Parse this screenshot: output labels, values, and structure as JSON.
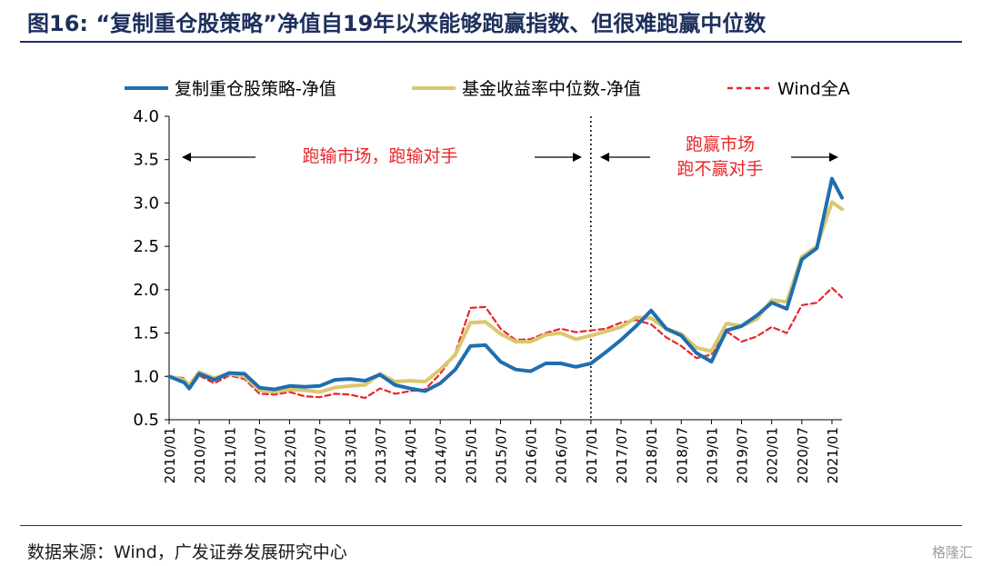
{
  "header": {
    "title": "图16:   “复制重仓股策略”净值自19年以来能够跑赢指数、但很难跑赢中位数"
  },
  "footer": {
    "source": "数据来源：Wind，广发证券发展研究中心",
    "watermark": "格隆汇"
  },
  "colors": {
    "strategy": "#1f6eb0",
    "median": "#d9c86e",
    "wind": "#e8262b",
    "annotation": "#e8262b",
    "title": "#1d2f5c"
  },
  "chart_data": {
    "type": "line",
    "title": "“复制重仓股策略”净值自19年以来能够跑赢指数、但很难跑赢中位数",
    "xlabel": "",
    "ylabel": "",
    "ylim": [
      0.5,
      4.0
    ],
    "yticks": [
      "0.5",
      "1.0",
      "1.5",
      "2.0",
      "2.5",
      "3.0",
      "3.5",
      "4.0"
    ],
    "x_start": "2010/01",
    "x_end": "2021/03",
    "xticks": [
      "2010/01",
      "2010/07",
      "2011/01",
      "2011/07",
      "2012/01",
      "2012/07",
      "2013/01",
      "2013/07",
      "2014/01",
      "2014/07",
      "2015/01",
      "2015/07",
      "2016/01",
      "2016/07",
      "2017/01",
      "2017/07",
      "2018/01",
      "2018/07",
      "2019/01",
      "2019/07",
      "2020/01",
      "2020/07",
      "2021/01"
    ],
    "divider": "2017/01",
    "series": [
      {
        "name": "复制重仓股策略-净值",
        "style": "solid",
        "points": [
          [
            "2010/01",
            1.0
          ],
          [
            "2010/04",
            0.93
          ],
          [
            "2010/05",
            0.86
          ],
          [
            "2010/07",
            1.03
          ],
          [
            "2010/10",
            0.96
          ],
          [
            "2011/01",
            1.04
          ],
          [
            "2011/04",
            1.03
          ],
          [
            "2011/07",
            0.87
          ],
          [
            "2011/10",
            0.85
          ],
          [
            "2012/01",
            0.89
          ],
          [
            "2012/04",
            0.88
          ],
          [
            "2012/07",
            0.89
          ],
          [
            "2012/10",
            0.96
          ],
          [
            "2013/01",
            0.97
          ],
          [
            "2013/04",
            0.95
          ],
          [
            "2013/07",
            1.02
          ],
          [
            "2013/10",
            0.9
          ],
          [
            "2014/01",
            0.86
          ],
          [
            "2014/04",
            0.83
          ],
          [
            "2014/07",
            0.92
          ],
          [
            "2014/10",
            1.08
          ],
          [
            "2015/01",
            1.35
          ],
          [
            "2015/04",
            1.36
          ],
          [
            "2015/07",
            1.17
          ],
          [
            "2015/10",
            1.08
          ],
          [
            "2016/01",
            1.06
          ],
          [
            "2016/04",
            1.15
          ],
          [
            "2016/07",
            1.15
          ],
          [
            "2016/10",
            1.11
          ],
          [
            "2017/01",
            1.15
          ],
          [
            "2017/04",
            1.28
          ],
          [
            "2017/07",
            1.42
          ],
          [
            "2017/10",
            1.58
          ],
          [
            "2018/01",
            1.76
          ],
          [
            "2018/04",
            1.55
          ],
          [
            "2018/07",
            1.47
          ],
          [
            "2018/10",
            1.27
          ],
          [
            "2019/01",
            1.17
          ],
          [
            "2019/04",
            1.53
          ],
          [
            "2019/07",
            1.58
          ],
          [
            "2019/10",
            1.7
          ],
          [
            "2020/01",
            1.85
          ],
          [
            "2020/04",
            1.78
          ],
          [
            "2020/07",
            2.35
          ],
          [
            "2020/10",
            2.48
          ],
          [
            "2021/01",
            3.28
          ],
          [
            "2021/03",
            3.06
          ]
        ]
      },
      {
        "name": "基金收益率中位数-净值",
        "style": "solid",
        "points": [
          [
            "2010/01",
            1.0
          ],
          [
            "2010/04",
            0.96
          ],
          [
            "2010/05",
            0.9
          ],
          [
            "2010/07",
            1.05
          ],
          [
            "2010/10",
            0.98
          ],
          [
            "2011/01",
            1.03
          ],
          [
            "2011/04",
            1.0
          ],
          [
            "2011/07",
            0.84
          ],
          [
            "2011/10",
            0.82
          ],
          [
            "2012/01",
            0.85
          ],
          [
            "2012/04",
            0.84
          ],
          [
            "2012/07",
            0.82
          ],
          [
            "2012/10",
            0.87
          ],
          [
            "2013/01",
            0.89
          ],
          [
            "2013/04",
            0.9
          ],
          [
            "2013/07",
            1.03
          ],
          [
            "2013/10",
            0.94
          ],
          [
            "2014/01",
            0.95
          ],
          [
            "2014/04",
            0.94
          ],
          [
            "2014/07",
            1.08
          ],
          [
            "2014/10",
            1.25
          ],
          [
            "2015/01",
            1.62
          ],
          [
            "2015/04",
            1.63
          ],
          [
            "2015/07",
            1.49
          ],
          [
            "2015/10",
            1.4
          ],
          [
            "2016/01",
            1.4
          ],
          [
            "2016/04",
            1.48
          ],
          [
            "2016/07",
            1.5
          ],
          [
            "2016/10",
            1.43
          ],
          [
            "2017/01",
            1.47
          ],
          [
            "2017/04",
            1.52
          ],
          [
            "2017/07",
            1.57
          ],
          [
            "2017/10",
            1.68
          ],
          [
            "2018/01",
            1.67
          ],
          [
            "2018/04",
            1.55
          ],
          [
            "2018/07",
            1.49
          ],
          [
            "2018/10",
            1.33
          ],
          [
            "2019/01",
            1.29
          ],
          [
            "2019/04",
            1.61
          ],
          [
            "2019/07",
            1.58
          ],
          [
            "2019/10",
            1.66
          ],
          [
            "2020/01",
            1.88
          ],
          [
            "2020/04",
            1.86
          ],
          [
            "2020/07",
            2.38
          ],
          [
            "2020/10",
            2.5
          ],
          [
            "2021/01",
            3.01
          ],
          [
            "2021/03",
            2.93
          ]
        ]
      },
      {
        "name": "Wind全A",
        "style": "dashed",
        "points": [
          [
            "2010/01",
            1.0
          ],
          [
            "2010/04",
            0.98
          ],
          [
            "2010/05",
            0.85
          ],
          [
            "2010/07",
            1.01
          ],
          [
            "2010/10",
            0.92
          ],
          [
            "2011/01",
            1.01
          ],
          [
            "2011/04",
            0.97
          ],
          [
            "2011/07",
            0.8
          ],
          [
            "2011/10",
            0.79
          ],
          [
            "2012/01",
            0.82
          ],
          [
            "2012/04",
            0.77
          ],
          [
            "2012/07",
            0.76
          ],
          [
            "2012/10",
            0.8
          ],
          [
            "2013/01",
            0.79
          ],
          [
            "2013/04",
            0.75
          ],
          [
            "2013/07",
            0.86
          ],
          [
            "2013/10",
            0.8
          ],
          [
            "2014/01",
            0.83
          ],
          [
            "2014/04",
            0.85
          ],
          [
            "2014/07",
            1.03
          ],
          [
            "2014/10",
            1.27
          ],
          [
            "2015/01",
            1.79
          ],
          [
            "2015/04",
            1.8
          ],
          [
            "2015/07",
            1.55
          ],
          [
            "2015/10",
            1.42
          ],
          [
            "2016/01",
            1.43
          ],
          [
            "2016/04",
            1.5
          ],
          [
            "2016/07",
            1.55
          ],
          [
            "2016/10",
            1.51
          ],
          [
            "2017/01",
            1.53
          ],
          [
            "2017/04",
            1.55
          ],
          [
            "2017/07",
            1.62
          ],
          [
            "2017/10",
            1.65
          ],
          [
            "2018/01",
            1.6
          ],
          [
            "2018/04",
            1.45
          ],
          [
            "2018/07",
            1.35
          ],
          [
            "2018/10",
            1.21
          ],
          [
            "2019/01",
            1.25
          ],
          [
            "2019/04",
            1.52
          ],
          [
            "2019/07",
            1.4
          ],
          [
            "2019/10",
            1.46
          ],
          [
            "2020/01",
            1.57
          ],
          [
            "2020/04",
            1.5
          ],
          [
            "2020/07",
            1.82
          ],
          [
            "2020/10",
            1.85
          ],
          [
            "2021/01",
            2.02
          ],
          [
            "2021/03",
            1.91
          ]
        ]
      }
    ],
    "annotations": {
      "left": "跑输市场，跑输对手",
      "right_line1": "跑赢市场",
      "right_line2": "跑不赢对手"
    }
  }
}
